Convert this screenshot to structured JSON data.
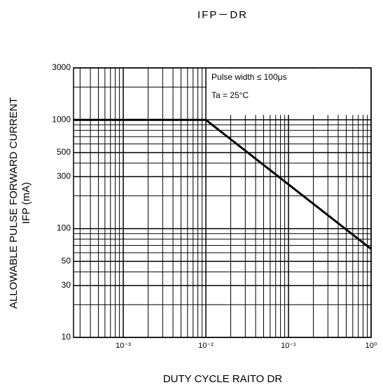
{
  "chart_data": {
    "type": "line",
    "title": "IFP－DR",
    "y_label": [
      "ALLOWABLE PULSE FORWARD CURRENT",
      "IFP (mA)"
    ],
    "x_label": "DUTY CYCLE RAITO DR",
    "annotations": [
      "Pulse width ≤ 100μs",
      "Ta = 25°C"
    ],
    "log_x": true,
    "log_y": true,
    "grid": true,
    "xlim": [
      0.00025,
      1
    ],
    "ylim": [
      10,
      3000
    ],
    "xticks": [
      {
        "value": 0.001,
        "label": "10⁻³"
      },
      {
        "value": 0.01,
        "label": "10⁻²"
      },
      {
        "value": 0.1,
        "label": "10⁻¹"
      },
      {
        "value": 1,
        "label": "10⁰"
      }
    ],
    "x_minor_ticks": [
      0.0003,
      0.0004,
      0.0005,
      0.0006,
      0.0007,
      0.0008,
      0.0009,
      0.002,
      0.003,
      0.004,
      0.005,
      0.006,
      0.007,
      0.008,
      0.009,
      0.02,
      0.03,
      0.04,
      0.05,
      0.06,
      0.07,
      0.08,
      0.09,
      0.2,
      0.3,
      0.4,
      0.5,
      0.6,
      0.7,
      0.8,
      0.9
    ],
    "yticks": [
      10,
      30,
      50,
      100,
      300,
      500,
      1000,
      3000
    ],
    "y_minor_ticks": [
      20,
      40,
      60,
      70,
      80,
      90,
      200,
      400,
      600,
      700,
      800,
      900,
      2000
    ],
    "series": [
      {
        "color": "#000000",
        "x": [
          0.00025,
          0.01,
          1
        ],
        "values": [
          1000,
          1000,
          65
        ]
      }
    ]
  }
}
